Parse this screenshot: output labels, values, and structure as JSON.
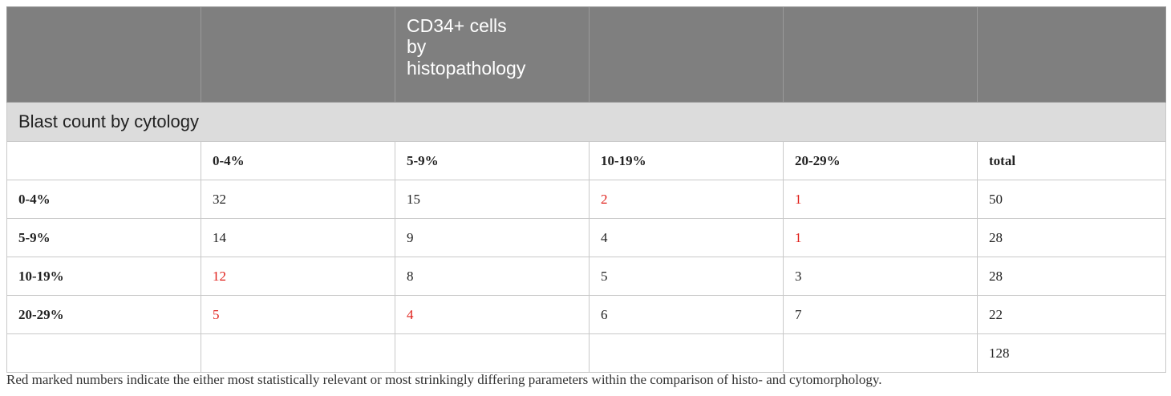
{
  "header": {
    "title": "CD34+ cells\nby\nhistopathology"
  },
  "subheader": "Blast count by cytology",
  "columns": [
    "",
    "0-4%",
    "5-9%",
    "10-19%",
    "20-29%",
    "total"
  ],
  "rows": [
    {
      "label": "0-4%",
      "cells": [
        "32",
        "15",
        "2",
        "1",
        "50"
      ],
      "red": [
        false,
        false,
        true,
        true,
        false
      ]
    },
    {
      "label": "5-9%",
      "cells": [
        "14",
        "9",
        "4",
        "1",
        "28"
      ],
      "red": [
        false,
        false,
        false,
        true,
        false
      ]
    },
    {
      "label": "10-19%",
      "cells": [
        "12",
        "8",
        "5",
        "3",
        "28"
      ],
      "red": [
        true,
        false,
        false,
        false,
        false
      ]
    },
    {
      "label": "20-29%",
      "cells": [
        "5",
        "4",
        "6",
        "7",
        "22"
      ],
      "red": [
        true,
        true,
        false,
        false,
        false
      ]
    },
    {
      "label": "",
      "cells": [
        "",
        "",
        "",
        "",
        "128"
      ],
      "red": [
        false,
        false,
        false,
        false,
        false
      ]
    }
  ],
  "colors": {
    "highlight": "#e0201b",
    "header_bg": "#7f7f7f",
    "subheader_bg": "#dcdcdc"
  },
  "footnote": "Red marked numbers indicate the either most statistically relevant or most strinkingly differing parameters within the comparison of histo- and cytomorphology."
}
